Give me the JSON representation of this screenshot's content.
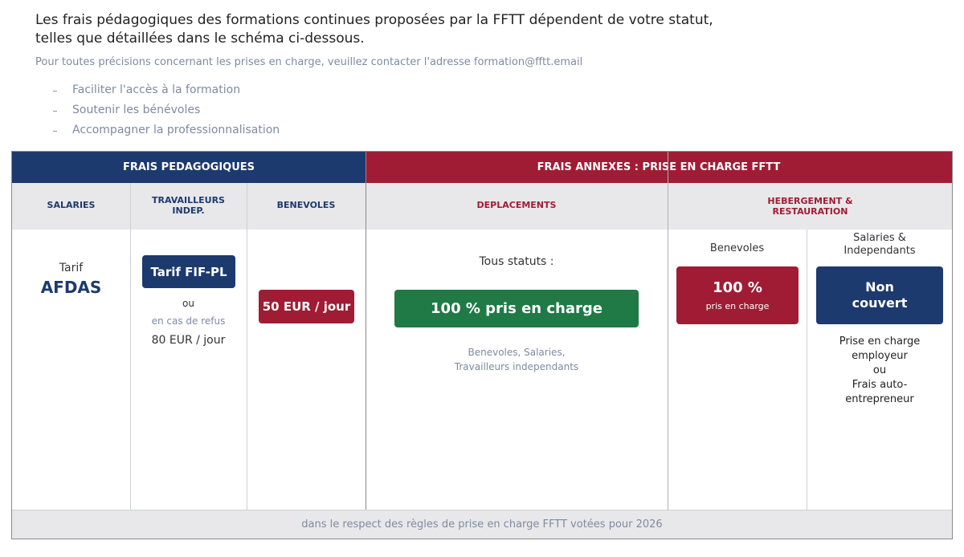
{
  "intro": {
    "lines": [
      "Les frais pédagogiques des formations continues proposées par la FFTT dépendent de votre statut,",
      "telles que détaillées dans le schéma ci-dessous."
    ],
    "note": "Pour toutes précisions concernant les prises en charge, veuillez contacter l'adresse formation@fftt.email"
  },
  "list": [
    "Faciliter l'accès à la formation",
    "Soutenir les bénévoles",
    "Accompagner la professionnalisation"
  ],
  "table": {
    "header": {
      "pedagogiques": "FRAIS PEDAGOGIQUES",
      "annexes": "FRAIS ANNEXES : PRISE EN CHARGE FFTT"
    },
    "columns": {
      "salaries": [
        "SALARIES"
      ],
      "travailleurs": [
        "TRAVAILLEURS",
        "INDEP."
      ],
      "benevoles": [
        "BENEVOLES"
      ],
      "deplacements": [
        "DEPLACEMENTS"
      ],
      "hebergement": [
        "HEBERGEMENT &",
        "RESTAURATION"
      ]
    },
    "salaries": {
      "label": "Tarif",
      "value": "AFDAS"
    },
    "travailleurs": {
      "badge": "Tarif FIF-PL",
      "or": "ou",
      "note": "en cas de refus",
      "price": "80 EUR / jour"
    },
    "benevoles": {
      "badge": "50 EUR / jour"
    },
    "deplacements": {
      "label": "Tous statuts :",
      "badge": "100 % pris en charge",
      "note": [
        "Benevoles, Salaries,",
        "Travailleurs independants"
      ]
    },
    "hebergement_benevoles": {
      "label": "Benevoles",
      "badge": "100 %",
      "badge_note": "pris en charge"
    },
    "hebergement_salaries": {
      "label": [
        "Salaries &",
        "Independants"
      ],
      "badge": [
        "Non",
        "couvert"
      ],
      "note": [
        "Prise en charge",
        "employeur",
        "ou",
        "Frais auto-",
        "entrepreneur"
      ]
    },
    "footer": "dans le respect des règles de prise en charge FFTT votées pour 2026"
  }
}
